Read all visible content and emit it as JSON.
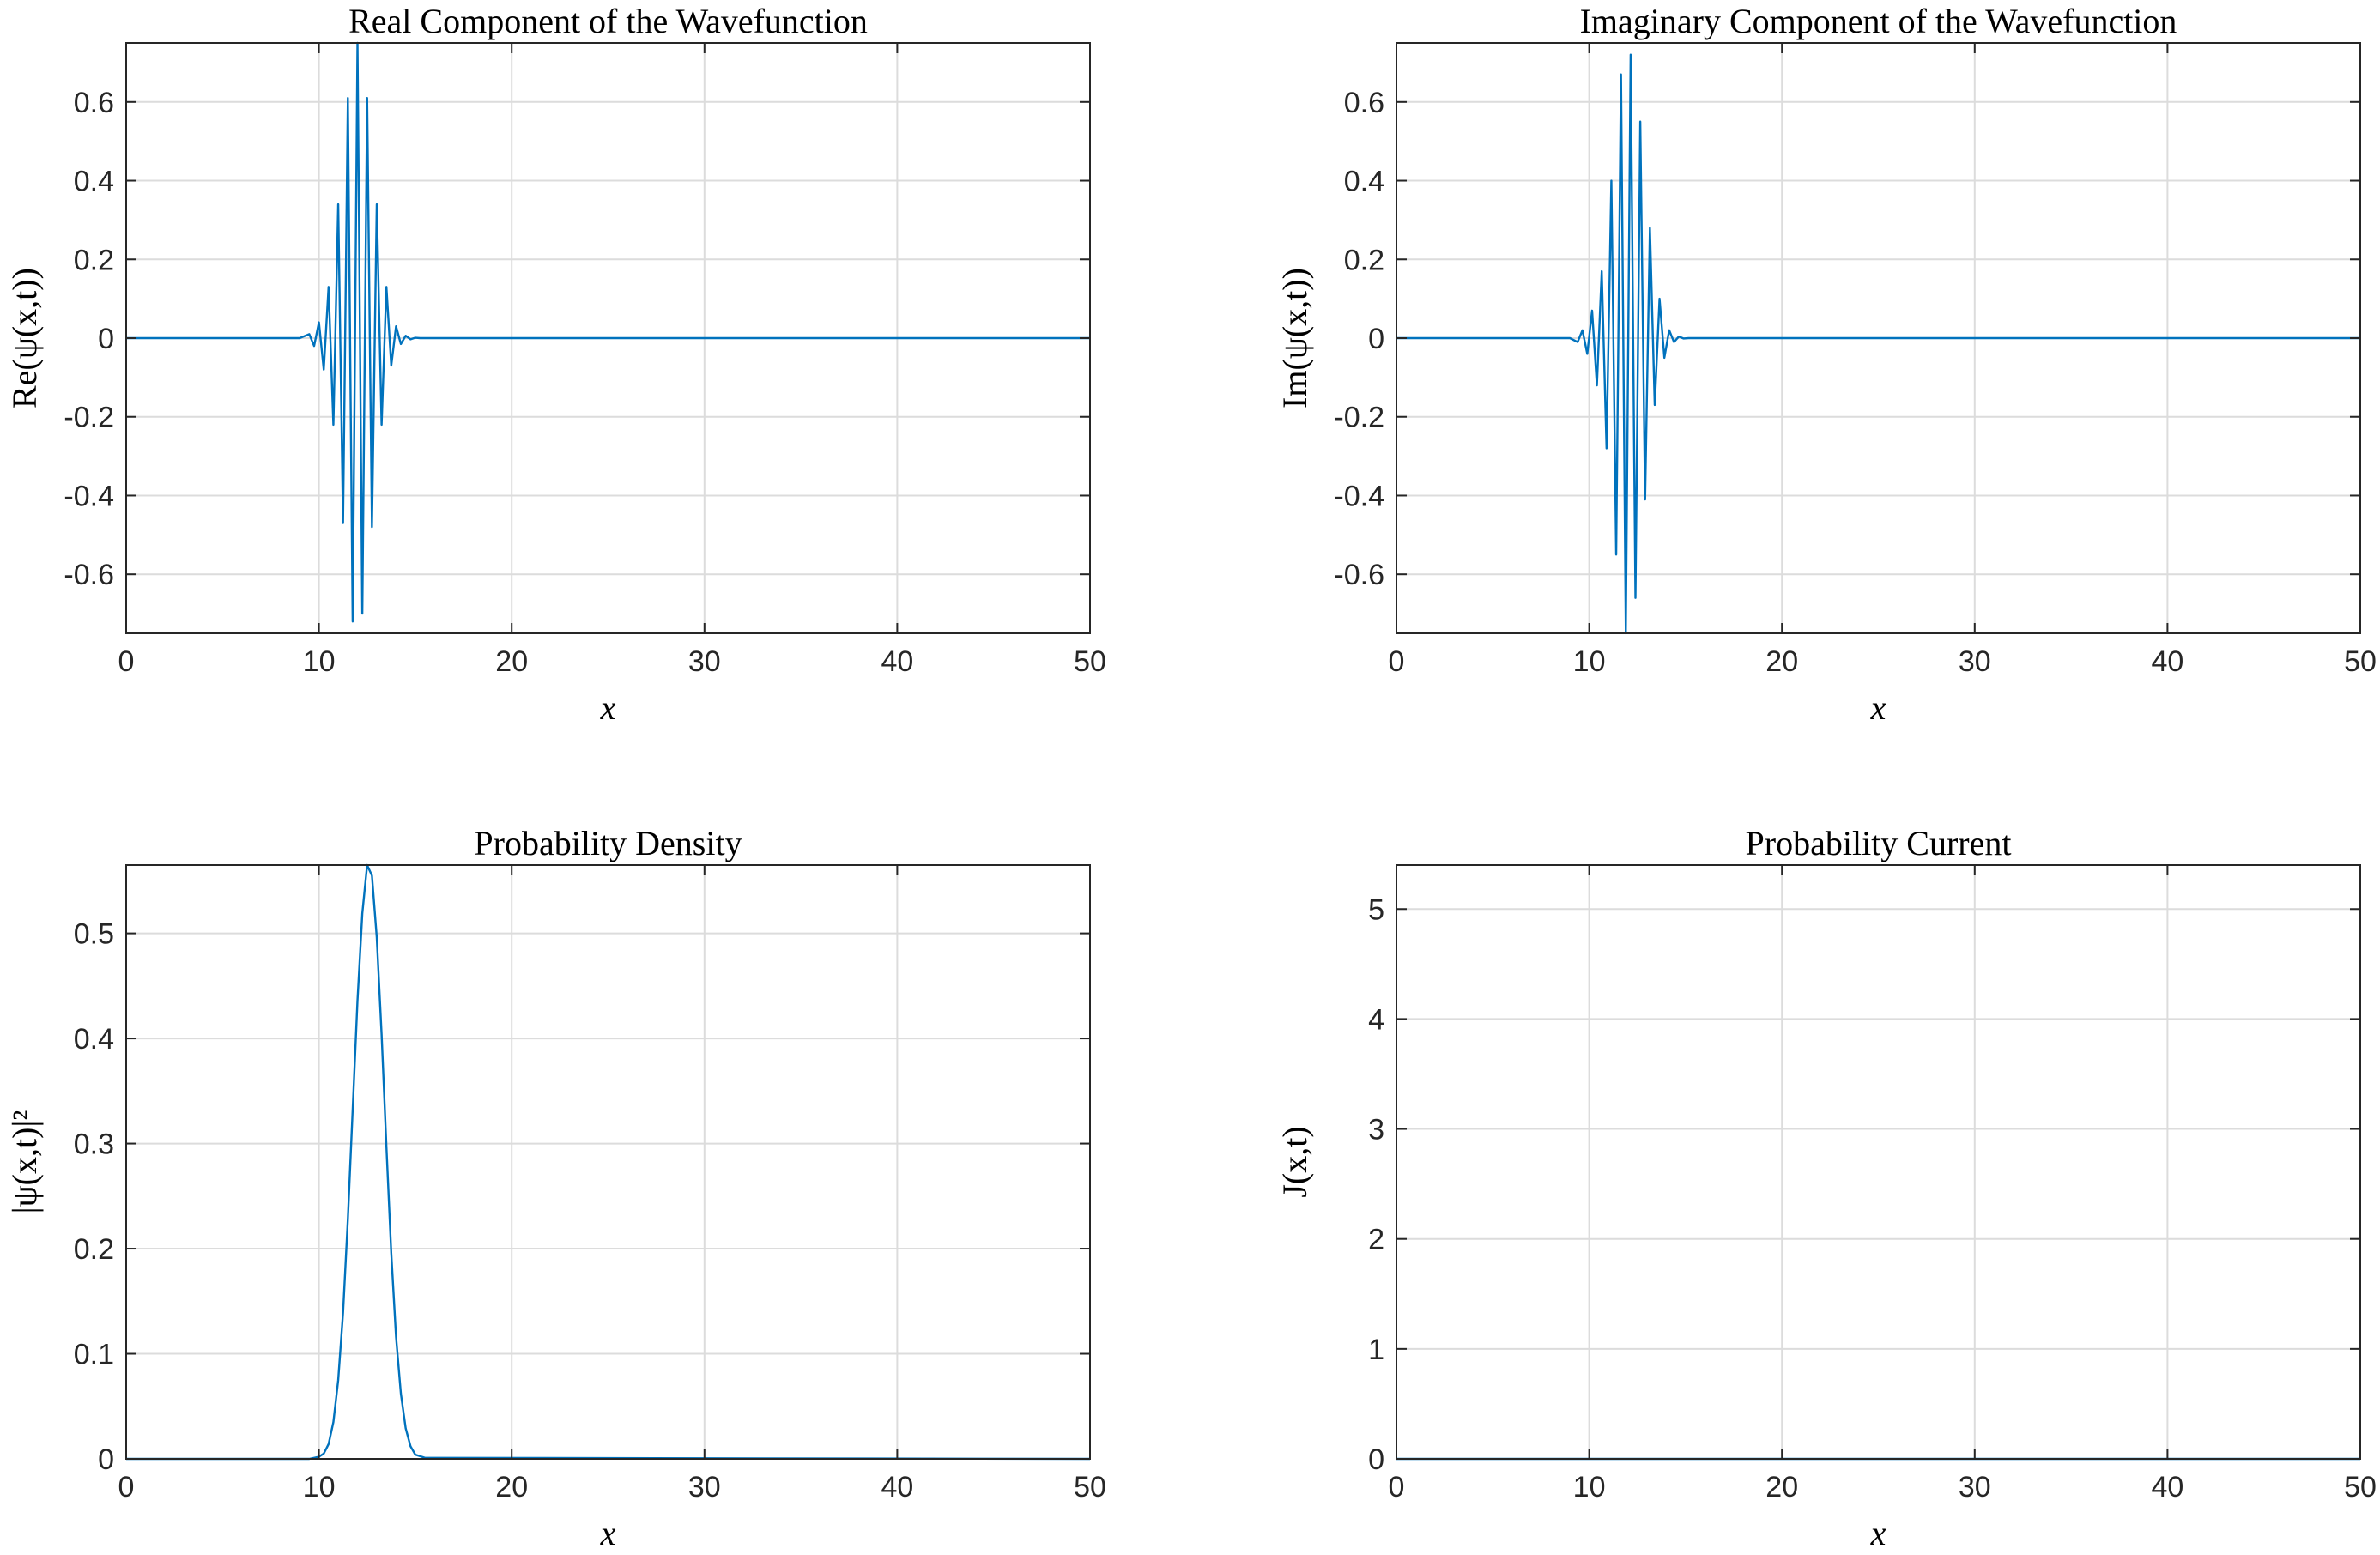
{
  "chart_data": [
    {
      "type": "line",
      "title": "Real Component of the Wavefunction",
      "xlabel": "x",
      "ylabel": "Re(ψ(x,t))",
      "xlim": [
        0,
        50
      ],
      "ylim": [
        -0.75,
        0.75
      ],
      "xticks": [
        "0",
        "10",
        "20",
        "30",
        "40",
        "50"
      ],
      "yticks": [
        "-0.6",
        "-0.4",
        "-0.2",
        "0",
        "0.2",
        "0.4",
        "0.6"
      ],
      "grid": true,
      "series": [
        {
          "color": "#0072bd",
          "x": [
            0,
            9.0,
            9.5,
            9.75,
            10.0,
            10.25,
            10.5,
            10.75,
            11.0,
            11.25,
            11.5,
            11.75,
            12.0,
            12.25,
            12.5,
            12.75,
            13.0,
            13.25,
            13.5,
            13.75,
            14.0,
            14.25,
            14.5,
            14.75,
            15.0,
            15.25,
            15.5,
            16.0,
            50
          ],
          "y": [
            0,
            0,
            0.01,
            -0.02,
            0.04,
            -0.08,
            0.13,
            -0.22,
            0.34,
            -0.47,
            0.61,
            -0.72,
            0.75,
            -0.7,
            0.61,
            -0.48,
            0.34,
            -0.22,
            0.13,
            -0.07,
            0.03,
            -0.015,
            0.006,
            -0.003,
            0.001,
            0,
            0,
            0,
            0
          ]
        }
      ]
    },
    {
      "type": "line",
      "title": "Imaginary Component of the Wavefunction",
      "xlabel": "x",
      "ylabel": "Im(ψ(x,t))",
      "xlim": [
        0,
        50
      ],
      "ylim": [
        -0.75,
        0.75
      ],
      "xticks": [
        "0",
        "10",
        "20",
        "30",
        "40",
        "50"
      ],
      "yticks": [
        "-0.6",
        "-0.4",
        "-0.2",
        "0",
        "0.2",
        "0.4",
        "0.6"
      ],
      "grid": true,
      "series": [
        {
          "color": "#0072bd",
          "x": [
            0,
            9.0,
            9.4,
            9.65,
            9.9,
            10.15,
            10.4,
            10.65,
            10.9,
            11.15,
            11.4,
            11.65,
            11.9,
            12.15,
            12.4,
            12.65,
            12.9,
            13.15,
            13.4,
            13.65,
            13.9,
            14.15,
            14.4,
            14.65,
            14.9,
            15.15,
            15.4,
            16.0,
            50
          ],
          "y": [
            0,
            0,
            -0.01,
            0.02,
            -0.04,
            0.07,
            -0.12,
            0.17,
            -0.28,
            0.4,
            -0.55,
            0.67,
            -0.75,
            0.72,
            -0.66,
            0.55,
            -0.41,
            0.28,
            -0.17,
            0.1,
            -0.05,
            0.02,
            -0.01,
            0.004,
            -0.001,
            0,
            0,
            0,
            0
          ]
        }
      ]
    },
    {
      "type": "line",
      "title": "Probability Density",
      "xlabel": "x",
      "ylabel": "|ψ(x,t)|²",
      "xlim": [
        0,
        50
      ],
      "ylim": [
        0,
        0.565
      ],
      "xticks": [
        "0",
        "10",
        "20",
        "30",
        "40",
        "50"
      ],
      "yticks": [
        "0",
        "0.1",
        "0.2",
        "0.3",
        "0.4",
        "0.5"
      ],
      "grid": true,
      "series": [
        {
          "color": "#0072bd",
          "x": [
            0,
            9.5,
            10.0,
            10.25,
            10.5,
            10.75,
            11.0,
            11.25,
            11.5,
            11.75,
            12.0,
            12.25,
            12.5,
            12.75,
            13.0,
            13.25,
            13.5,
            13.75,
            14.0,
            14.25,
            14.5,
            14.75,
            15.0,
            15.5,
            50
          ],
          "y": [
            0,
            0,
            0.002,
            0.005,
            0.014,
            0.035,
            0.075,
            0.139,
            0.228,
            0.332,
            0.436,
            0.519,
            0.565,
            0.555,
            0.496,
            0.404,
            0.297,
            0.196,
            0.116,
            0.062,
            0.029,
            0.012,
            0.004,
            0.001,
            0
          ]
        }
      ]
    },
    {
      "type": "line",
      "title": "Probability Current",
      "xlabel": "x",
      "ylabel": "J(x,t)",
      "xlim": [
        0,
        50
      ],
      "ylim": [
        0,
        5.4
      ],
      "xticks": [
        "0",
        "10",
        "20",
        "30",
        "40",
        "50"
      ],
      "yticks": [
        "0",
        "1",
        "2",
        "3",
        "4",
        "5"
      ],
      "grid": true,
      "series": [
        {
          "color": "#0072bd",
          "x": [
            0,
            50
          ],
          "y": [
            0,
            0
          ]
        }
      ]
    }
  ]
}
